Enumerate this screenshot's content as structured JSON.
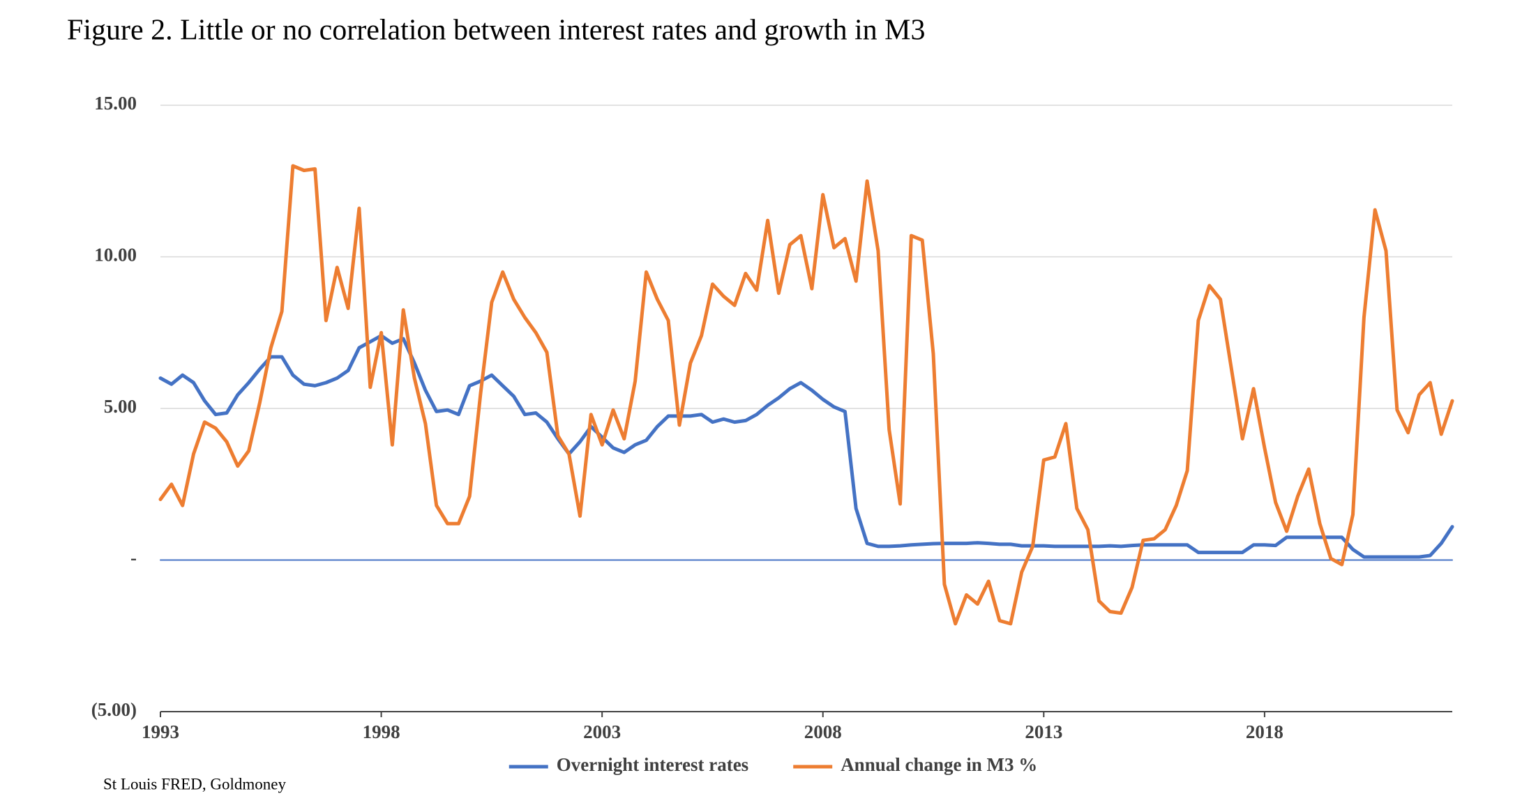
{
  "chart_data": {
    "type": "line",
    "title": "Figure 2. Little or no correlation between interest rates and growth in M3",
    "source": "St Louis FRED, Goldmoney",
    "x": [
      1993,
      1993.25,
      1993.5,
      1993.75,
      1994,
      1994.25,
      1994.5,
      1994.75,
      1995,
      1995.25,
      1995.5,
      1995.75,
      1996,
      1996.25,
      1996.5,
      1996.75,
      1997,
      1997.25,
      1997.5,
      1997.75,
      1998,
      1998.25,
      1998.5,
      1998.75,
      1999,
      1999.25,
      1999.5,
      1999.75,
      2000,
      2000.25,
      2000.5,
      2000.75,
      2001,
      2001.25,
      2001.5,
      2001.75,
      2002,
      2002.25,
      2002.5,
      2002.75,
      2003,
      2003.25,
      2003.5,
      2003.75,
      2004,
      2004.25,
      2004.5,
      2004.75,
      2005,
      2005.25,
      2005.5,
      2005.75,
      2006,
      2006.25,
      2006.5,
      2006.75,
      2007,
      2007.25,
      2007.5,
      2007.75,
      2008,
      2008.25,
      2008.5,
      2008.75,
      2009,
      2009.25,
      2009.5,
      2009.75,
      2010,
      2010.25,
      2010.5,
      2010.75,
      2011,
      2011.25,
      2011.5,
      2011.75,
      2012,
      2012.25,
      2012.5,
      2012.75,
      2013,
      2013.25,
      2013.5,
      2013.75,
      2014,
      2014.25,
      2014.5,
      2014.75,
      2015,
      2015.25,
      2015.5,
      2015.75,
      2016,
      2016.25,
      2016.5,
      2016.75,
      2017,
      2017.25,
      2017.5,
      2017.75,
      2018,
      2018.25,
      2018.5,
      2018.75,
      2019,
      2019.25,
      2019.5,
      2019.75,
      2020,
      2020.25,
      2020.5,
      2020.75,
      2021,
      2021.25,
      2021.5,
      2021.75,
      2022,
      2022.25
    ],
    "series": [
      {
        "name": "Overnight interest rates",
        "color": "#4472c4",
        "line_width": 5,
        "values": [
          6.0,
          5.8,
          6.1,
          5.85,
          5.25,
          4.8,
          4.85,
          5.45,
          5.85,
          6.3,
          6.7,
          6.7,
          6.1,
          5.8,
          5.75,
          5.85,
          6.0,
          6.25,
          7.0,
          7.2,
          7.4,
          7.15,
          7.3,
          6.5,
          5.6,
          4.9,
          4.95,
          4.8,
          5.75,
          5.9,
          6.1,
          5.75,
          5.4,
          4.8,
          4.85,
          4.55,
          4.0,
          3.5,
          3.9,
          4.4,
          4.05,
          3.7,
          3.55,
          3.8,
          3.95,
          4.4,
          4.75,
          4.75,
          4.75,
          4.8,
          4.55,
          4.65,
          4.55,
          4.6,
          4.8,
          5.1,
          5.35,
          5.65,
          5.85,
          5.6,
          5.3,
          5.05,
          4.9,
          1.7,
          0.55,
          0.45,
          0.45,
          0.47,
          0.5,
          0.52,
          0.54,
          0.55,
          0.55,
          0.55,
          0.57,
          0.55,
          0.52,
          0.52,
          0.47,
          0.47,
          0.47,
          0.45,
          0.45,
          0.45,
          0.45,
          0.45,
          0.47,
          0.45,
          0.48,
          0.5,
          0.5,
          0.5,
          0.5,
          0.5,
          0.25,
          0.25,
          0.25,
          0.25,
          0.25,
          0.5,
          0.5,
          0.48,
          0.75,
          0.75,
          0.75,
          0.75,
          0.75,
          0.75,
          0.35,
          0.1,
          0.1,
          0.1,
          0.1,
          0.1,
          0.1,
          0.15,
          0.55,
          1.1
        ]
      },
      {
        "name": "Annual change in M3 %",
        "color": "#ed7d31",
        "line_width": 5,
        "values": [
          2.0,
          2.5,
          1.8,
          3.5,
          4.55,
          4.35,
          3.9,
          3.1,
          3.6,
          5.2,
          7.0,
          8.2,
          13.0,
          12.85,
          12.9,
          7.9,
          9.65,
          8.3,
          11.6,
          5.7,
          7.5,
          3.8,
          8.25,
          6.0,
          4.5,
          1.8,
          1.2,
          1.2,
          2.1,
          5.5,
          8.5,
          9.5,
          8.6,
          8.0,
          7.5,
          6.85,
          4.1,
          3.5,
          1.45,
          4.8,
          3.8,
          4.95,
          4.0,
          5.9,
          9.5,
          8.6,
          7.9,
          4.45,
          6.5,
          7.4,
          9.1,
          8.7,
          8.4,
          9.45,
          8.9,
          11.2,
          8.8,
          10.4,
          10.7,
          8.95,
          12.05,
          10.3,
          10.6,
          9.2,
          12.5,
          10.2,
          4.3,
          1.85,
          10.7,
          10.55,
          6.8,
          -0.8,
          -2.1,
          -1.15,
          -1.45,
          -0.7,
          -2.0,
          -2.1,
          -0.4,
          0.45,
          3.3,
          3.4,
          4.5,
          1.7,
          1.0,
          -1.35,
          -1.7,
          -1.75,
          -0.9,
          0.65,
          0.7,
          1.0,
          1.8,
          2.95,
          7.9,
          9.05,
          8.6,
          6.3,
          4.0,
          5.65,
          3.7,
          1.9,
          0.95,
          2.1,
          3.0,
          1.2,
          0.05,
          -0.15,
          1.5,
          8.0,
          11.55,
          10.2,
          4.95,
          4.2,
          5.45,
          5.85,
          4.15,
          5.25
        ]
      },
      {
        "color": "#4472c4",
        "line_width": 2,
        "values": [
          0,
          0,
          0,
          0,
          0,
          0,
          0,
          0,
          0,
          0,
          0,
          0,
          0,
          0,
          0,
          0,
          0,
          0,
          0,
          0,
          0,
          0,
          0,
          0,
          0,
          0,
          0,
          0,
          0,
          0,
          0,
          0,
          0,
          0,
          0,
          0,
          0,
          0,
          0,
          0,
          0,
          0,
          0,
          0,
          0,
          0,
          0,
          0,
          0,
          0,
          0,
          0,
          0,
          0,
          0,
          0,
          0,
          0,
          0,
          0,
          0,
          0,
          0,
          0,
          0,
          0,
          0,
          0,
          0,
          0,
          0,
          0,
          0,
          0,
          0,
          0,
          0,
          0,
          0,
          0,
          0,
          0,
          0,
          0,
          0,
          0,
          0,
          0,
          0,
          0,
          0,
          0,
          0,
          0,
          0,
          0,
          0,
          0,
          0,
          0,
          0,
          0,
          0,
          0,
          0,
          0,
          0,
          0,
          0,
          0,
          0,
          0,
          0,
          0,
          0,
          0,
          0,
          0
        ]
      }
    ],
    "xlim": [
      1993,
      2022.25
    ],
    "xticks": [
      1993,
      1998,
      2003,
      2008,
      2013,
      2018
    ],
    "ylim": [
      -5,
      15
    ],
    "yticks": [
      {
        "value": -5,
        "label": "(5.00)"
      },
      {
        "value": 0,
        "label": "-"
      },
      {
        "value": 5,
        "label": "5.00"
      },
      {
        "value": 10,
        "label": "10.00"
      },
      {
        "value": 15,
        "label": "15.00"
      }
    ],
    "grid": true,
    "legend": "bottom"
  }
}
